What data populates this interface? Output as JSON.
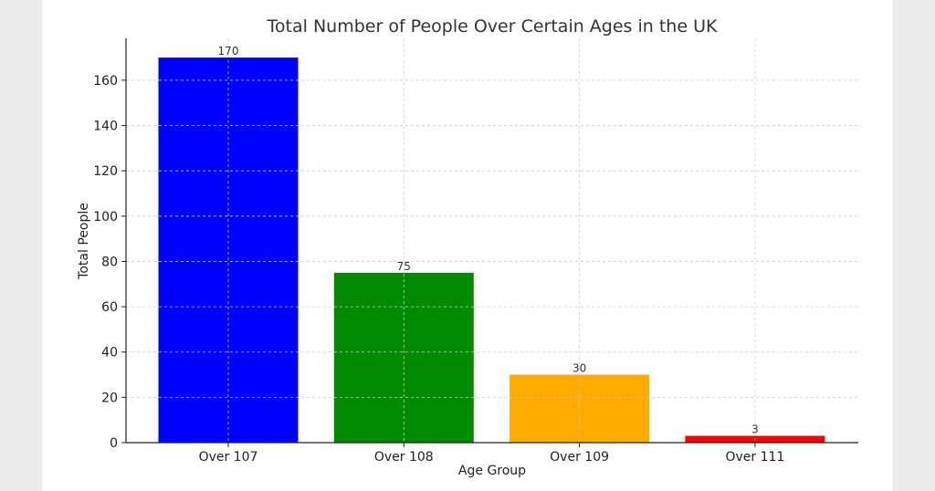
{
  "chart_data": {
    "type": "bar",
    "title": "Total Number of People Over Certain Ages in the UK",
    "xlabel": "Age Group",
    "ylabel": "Total People",
    "categories": [
      "Over 107",
      "Over 108",
      "Over 109",
      "Over 111"
    ],
    "values": [
      170,
      75,
      30,
      3
    ],
    "colors": [
      "#0000ff",
      "#008b00",
      "#ffab00",
      "#ff0000"
    ],
    "ylim": [
      0,
      178.5
    ],
    "yticks": [
      0,
      20,
      40,
      60,
      80,
      100,
      120,
      140,
      160
    ],
    "grid": true,
    "grid_color": "#cccccc",
    "data_labels": [
      "170",
      "75",
      "30",
      "3"
    ]
  }
}
